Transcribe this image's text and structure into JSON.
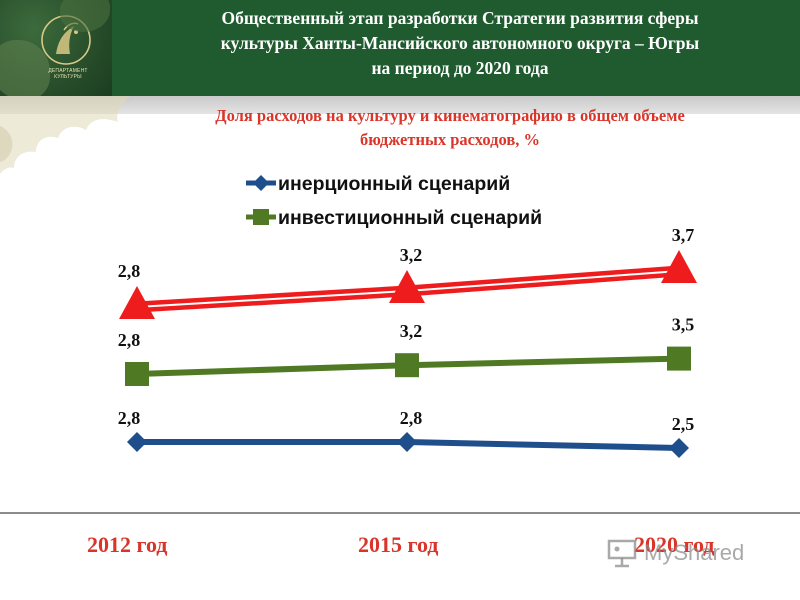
{
  "header": {
    "title_lines": [
      "Общественный этап разработки Стратегии развития сферы",
      "культуры Ханты-Мансийского автономного округа – Югры",
      "на период до 2020 года"
    ],
    "logo_caption": "ДЕПАРТАМЕНТ КУЛЬТУРЫ"
  },
  "subtitle_lines": [
    "Доля расходов на культуру и кинематографию в общем объеме",
    "бюджетных расходов, %"
  ],
  "legend": {
    "inertial": "инерционный сценарий",
    "investment": "инвестиционный сценарий"
  },
  "x_labels": [
    "2012 год",
    "2015 год",
    "2020 год"
  ],
  "watermark": "MyShared",
  "colors": {
    "header_bg": "#1f5b2e",
    "subtitle": "#d9352a",
    "inertial": "#1f4e8c",
    "investment": "#4f7a23",
    "third_series": "#ee1c1c"
  },
  "chart_data": {
    "type": "line",
    "categories": [
      "2012 год",
      "2015 год",
      "2020 год"
    ],
    "series": [
      {
        "key": "red",
        "values": [
          2.8,
          3.2,
          3.7
        ],
        "labels": [
          "2,8",
          "3,2",
          "3,7"
        ]
      },
      {
        "key": "investment",
        "name": "инвестиционный сценарий",
        "values": [
          2.8,
          3.2,
          3.5
        ],
        "labels": [
          "2,8",
          "3,2",
          "3,5"
        ]
      },
      {
        "key": "inertial",
        "name": "инерционный сценарий",
        "values": [
          2.8,
          2.8,
          2.5
        ],
        "labels": [
          "2,8",
          "2,8",
          "2,5"
        ]
      }
    ],
    "grid": false,
    "legend_position": "top"
  }
}
